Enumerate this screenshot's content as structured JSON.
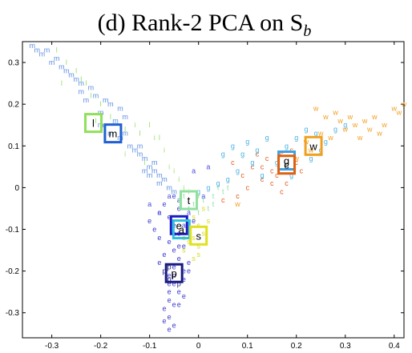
{
  "chart_data": {
    "type": "scatter",
    "title": "(d) Rank-2 PCA on S",
    "title_subscript": "b",
    "xlabel": "",
    "ylabel": "",
    "xlim": [
      -0.36,
      0.42
    ],
    "ylim": [
      -0.36,
      0.35
    ],
    "grid": false,
    "x_ticks": [
      "-0.3",
      "-0.2",
      "-0.1",
      "0",
      "0.1",
      "0.2",
      "0.3",
      "0.4"
    ],
    "x_tick_values": [
      -0.3,
      -0.2,
      -0.1,
      0,
      0.1,
      0.2,
      0.3,
      0.4
    ],
    "y_ticks": [
      "0.3",
      "0.2",
      "0.1",
      "0",
      "-0.1",
      "-0.2",
      "-0.3"
    ],
    "y_tick_values": [
      0.3,
      0.2,
      0.1,
      0,
      -0.1,
      -0.2,
      -0.3
    ],
    "series": [
      {
        "label": "m",
        "color": "#5b8de0",
        "points": [
          [
            -0.34,
            0.34
          ],
          [
            -0.33,
            0.33
          ],
          [
            -0.32,
            0.32
          ],
          [
            -0.3,
            0.3
          ],
          [
            -0.29,
            0.31
          ],
          [
            -0.28,
            0.29
          ],
          [
            -0.27,
            0.28
          ],
          [
            -0.25,
            0.26
          ],
          [
            -0.24,
            0.25
          ],
          [
            -0.22,
            0.24
          ],
          [
            -0.21,
            0.22
          ],
          [
            -0.19,
            0.21
          ],
          [
            -0.18,
            0.2
          ],
          [
            -0.16,
            0.19
          ],
          [
            -0.15,
            0.17
          ],
          [
            -0.2,
            0.15
          ],
          [
            -0.18,
            0.13
          ],
          [
            -0.16,
            0.12
          ],
          [
            -0.14,
            0.1
          ],
          [
            -0.13,
            0.09
          ],
          [
            -0.12,
            0.08
          ],
          [
            -0.11,
            0.07
          ],
          [
            -0.1,
            0.05
          ],
          [
            -0.09,
            0.04
          ],
          [
            -0.08,
            0.03
          ],
          [
            -0.07,
            0.02
          ],
          [
            -0.09,
            0.06
          ],
          [
            -0.12,
            0.1
          ],
          [
            -0.24,
            0.23
          ],
          [
            -0.26,
            0.27
          ],
          [
            -0.31,
            0.33
          ],
          [
            -0.23,
            0.21
          ],
          [
            -0.2,
            0.18
          ],
          [
            -0.17,
            0.16
          ],
          [
            -0.15,
            0.13
          ],
          [
            -0.11,
            0.04
          ],
          [
            -0.1,
            0.03
          ],
          [
            -0.08,
            0.01
          ],
          [
            -0.06,
            0.0
          ],
          [
            -0.05,
            -0.01
          ]
        ]
      },
      {
        "label": "l",
        "color": "#8fe05b",
        "points": [
          [
            -0.29,
            0.33
          ],
          [
            -0.27,
            0.3
          ],
          [
            -0.25,
            0.28
          ],
          [
            -0.23,
            0.25
          ],
          [
            -0.22,
            0.22
          ],
          [
            -0.2,
            0.2
          ],
          [
            -0.18,
            0.17
          ],
          [
            -0.15,
            0.14
          ],
          [
            -0.12,
            0.13
          ],
          [
            -0.1,
            0.15
          ],
          [
            -0.08,
            0.12
          ],
          [
            -0.21,
            0.16
          ],
          [
            -0.24,
            0.26
          ],
          [
            -0.28,
            0.25
          ]
        ]
      },
      {
        "label": "e",
        "color": "#3a3ad0",
        "points": [
          [
            -0.05,
            -0.02
          ],
          [
            -0.04,
            -0.05
          ],
          [
            -0.06,
            -0.07
          ],
          [
            -0.05,
            -0.09
          ],
          [
            -0.04,
            -0.11
          ],
          [
            -0.06,
            -0.13
          ],
          [
            -0.05,
            -0.15
          ],
          [
            -0.04,
            -0.17
          ],
          [
            -0.05,
            -0.19
          ],
          [
            -0.06,
            -0.21
          ],
          [
            -0.05,
            -0.23
          ],
          [
            -0.04,
            -0.25
          ],
          [
            -0.06,
            -0.27
          ],
          [
            -0.07,
            -0.29
          ],
          [
            -0.06,
            -0.31
          ],
          [
            -0.07,
            -0.32
          ],
          [
            -0.05,
            -0.33
          ],
          [
            -0.06,
            -0.34
          ],
          [
            -0.03,
            -0.22
          ],
          [
            -0.02,
            -0.2
          ],
          [
            -0.08,
            -0.18
          ],
          [
            -0.07,
            -0.16
          ],
          [
            -0.03,
            -0.14
          ],
          [
            -0.02,
            -0.18
          ],
          [
            -0.08,
            -0.12
          ],
          [
            -0.09,
            -0.1
          ],
          [
            -0.1,
            -0.08
          ],
          [
            -0.08,
            -0.06
          ],
          [
            -0.07,
            -0.04
          ],
          [
            -0.03,
            -0.26
          ],
          [
            -0.04,
            -0.28
          ],
          [
            -0.06,
            -0.25
          ],
          [
            -0.05,
            -0.28
          ],
          [
            -0.03,
            -0.2
          ],
          [
            -0.06,
            -0.23
          ],
          [
            -0.04,
            -0.14
          ],
          [
            -0.02,
            -0.1
          ],
          [
            -0.01,
            -0.08
          ]
        ]
      },
      {
        "label": "a",
        "color": "#4a4ae0",
        "points": [
          [
            -0.1,
            -0.04
          ],
          [
            -0.08,
            -0.06
          ],
          [
            -0.06,
            -0.02
          ],
          [
            -0.04,
            -0.03
          ],
          [
            -0.02,
            -0.06
          ],
          [
            -0.03,
            -0.09
          ],
          [
            -0.05,
            -0.11
          ],
          [
            -0.01,
            0.04
          ],
          [
            0.02,
            0.05
          ],
          [
            0.01,
            -0.02
          ]
        ]
      },
      {
        "label": "c",
        "color": "#e05b1e",
        "points": [
          [
            0.07,
            0.06
          ],
          [
            0.09,
            0.03
          ],
          [
            0.11,
            0.05
          ],
          [
            0.13,
            0.02
          ],
          [
            0.15,
            0.04
          ],
          [
            0.17,
            0.08
          ],
          [
            0.16,
            0.03
          ],
          [
            0.14,
            0.07
          ],
          [
            0.18,
            0.01
          ],
          [
            0.2,
            0.06
          ],
          [
            0.12,
            0.08
          ],
          [
            0.1,
            0.0
          ],
          [
            0.08,
            -0.02
          ],
          [
            0.05,
            -0.03
          ],
          [
            0.19,
            0.09
          ],
          [
            0.21,
            0.04
          ],
          [
            0.17,
            -0.01
          ],
          [
            0.15,
            0.01
          ],
          [
            0.13,
            0.05
          ]
        ]
      },
      {
        "label": "g",
        "color": "#4ab0e0",
        "points": [
          [
            0.05,
            0.08
          ],
          [
            0.07,
            0.1
          ],
          [
            0.1,
            0.11
          ],
          [
            0.12,
            0.09
          ],
          [
            0.14,
            0.12
          ],
          [
            0.16,
            0.06
          ],
          [
            0.18,
            0.1
          ],
          [
            0.2,
            0.12
          ],
          [
            0.22,
            0.14
          ],
          [
            0.24,
            0.13
          ],
          [
            0.26,
            0.11
          ],
          [
            0.28,
            0.14
          ],
          [
            0.3,
            0.15
          ],
          [
            0.08,
            0.04
          ],
          [
            0.11,
            0.06
          ],
          [
            0.13,
            0.03
          ],
          [
            0.06,
            0.02
          ],
          [
            0.04,
            0.01
          ],
          [
            0.02,
            0.0
          ],
          [
            0.0,
            -0.01
          ],
          [
            0.09,
            0.08
          ],
          [
            0.19,
            0.03
          ],
          [
            0.23,
            0.07
          ],
          [
            0.25,
            0.09
          ]
        ]
      },
      {
        "label": "w",
        "color": "#f0a020",
        "points": [
          [
            0.24,
            0.19
          ],
          [
            0.26,
            0.17
          ],
          [
            0.28,
            0.18
          ],
          [
            0.3,
            0.14
          ],
          [
            0.32,
            0.15
          ],
          [
            0.34,
            0.16
          ],
          [
            0.36,
            0.17
          ],
          [
            0.38,
            0.15
          ],
          [
            0.4,
            0.19
          ],
          [
            0.41,
            0.18
          ],
          [
            0.42,
            0.2
          ],
          [
            0.27,
            0.12
          ],
          [
            0.29,
            0.16
          ],
          [
            0.33,
            0.12
          ],
          [
            0.35,
            0.14
          ],
          [
            0.31,
            0.17
          ],
          [
            0.23,
            0.09
          ],
          [
            0.25,
            0.13
          ],
          [
            0.2,
            0.07
          ],
          [
            0.22,
            0.11
          ],
          [
            0.08,
            -0.04
          ],
          [
            0.37,
            0.13
          ]
        ]
      },
      {
        "label": "s",
        "color": "#d8d820",
        "points": [
          [
            -0.02,
            -0.1
          ],
          [
            -0.01,
            -0.12
          ],
          [
            0.0,
            -0.14
          ],
          [
            -0.03,
            -0.15
          ],
          [
            0.01,
            -0.11
          ],
          [
            -0.02,
            -0.13
          ],
          [
            0.0,
            -0.09
          ],
          [
            -0.01,
            -0.07
          ],
          [
            0.02,
            -0.08
          ],
          [
            0.01,
            -0.05
          ],
          [
            -0.03,
            -0.12
          ],
          [
            0.0,
            -0.16
          ],
          [
            -0.01,
            -0.17
          ]
        ]
      },
      {
        "label": "t",
        "color": "#90e0a0",
        "points": [
          [
            -0.03,
            -0.02
          ],
          [
            -0.01,
            -0.04
          ],
          [
            0.01,
            -0.03
          ],
          [
            0.03,
            -0.02
          ],
          [
            0.05,
            -0.01
          ],
          [
            0.04,
            0.0
          ],
          [
            0.02,
            -0.05
          ],
          [
            -0.02,
            -0.05
          ],
          [
            0.0,
            -0.06
          ],
          [
            0.03,
            -0.04
          ],
          [
            -0.04,
            -0.03
          ],
          [
            0.06,
            0.0
          ]
        ]
      },
      {
        "label": "i",
        "color": "#a0e070",
        "points": [
          [
            -0.13,
            0.15
          ],
          [
            -0.09,
            0.12
          ],
          [
            -0.07,
            0.09
          ],
          [
            -0.06,
            0.05
          ],
          [
            -0.04,
            0.02
          ],
          [
            -0.03,
            0.0
          ],
          [
            -0.02,
            -0.01
          ],
          [
            0.0,
            -0.02
          ],
          [
            -0.15,
            0.08
          ],
          [
            -0.11,
            0.06
          ],
          [
            -0.05,
            0.04
          ]
        ]
      },
      {
        "label": "p",
        "color": "#1a1a80",
        "points": [
          [
            -0.07,
            -0.2
          ],
          [
            -0.06,
            -0.19
          ],
          [
            -0.06,
            -0.22
          ],
          [
            -0.05,
            -0.21
          ],
          [
            -0.04,
            -0.23
          ]
        ]
      }
    ],
    "centers": [
      {
        "label": "l",
        "x": -0.215,
        "y": 0.155,
        "color": "#8fe05b"
      },
      {
        "label": "m",
        "x": -0.175,
        "y": 0.13,
        "color": "#2060d0"
      },
      {
        "label": "t",
        "x": -0.02,
        "y": -0.03,
        "color": "#90e0a0"
      },
      {
        "label": "e",
        "x": -0.04,
        "y": -0.09,
        "color": "#1a1ac0"
      },
      {
        "label": "a",
        "x": -0.035,
        "y": -0.1,
        "color": "#30c0e0"
      },
      {
        "label": "s",
        "x": 0.0,
        "y": -0.115,
        "color": "#e0e020"
      },
      {
        "label": "p",
        "x": -0.05,
        "y": -0.205,
        "color": "#1a1a80"
      },
      {
        "label": "g",
        "x": 0.18,
        "y": 0.065,
        "color": "#40a0e0"
      },
      {
        "label": "c",
        "x": 0.18,
        "y": 0.055,
        "color": "#e06010"
      },
      {
        "label": "w",
        "x": 0.235,
        "y": 0.1,
        "color": "#f0a020"
      }
    ]
  }
}
